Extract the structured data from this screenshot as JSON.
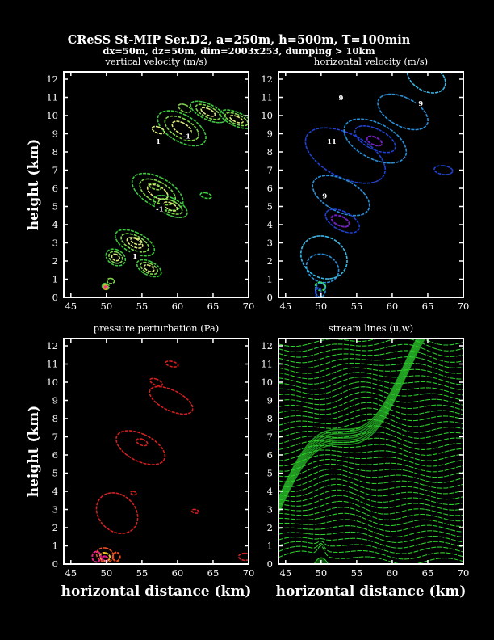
{
  "header": {
    "title": "CReSS St-MIP Ser.D2, a=250m, h=500m, T=100min",
    "subtitle": "dx=50m, dz=50m, dim=2003x253, dumping > 10km"
  },
  "axes": {
    "ylabel": "height (km)",
    "xlabel": "horizontal distance (km)"
  },
  "colors": {
    "background": "#000000",
    "frame": "#ffffff",
    "vertical_velocity": [
      "#3cc83c",
      "#7fd24a",
      "#d8e87a",
      "#f0a020",
      "#e43c8c"
    ],
    "horizontal_velocity": [
      "#2040d0",
      "#2890d8",
      "#38b8e8",
      "#7020c0",
      "#40e060"
    ],
    "pressure": [
      "#d02020",
      "#e85020",
      "#f0c020",
      "#e02080"
    ],
    "streamlines": "#2ccc2c"
  },
  "chart_data": [
    {
      "type": "contour",
      "title": "vertical velocity (m/s)",
      "xlabel": "",
      "ylabel": "height (km)",
      "xlim": [
        44,
        70
      ],
      "ylim": [
        0,
        12.4
      ],
      "xticks": [
        45,
        50,
        55,
        60,
        65,
        70
      ],
      "yticks": [
        0,
        1,
        2,
        3,
        4,
        5,
        6,
        7,
        8,
        9,
        10,
        11,
        12
      ],
      "contour_labels": [
        {
          "text": "1",
          "x": 57.3,
          "y": 8.6
        },
        {
          "text": "-1",
          "x": 61.3,
          "y": 8.9
        },
        {
          "text": "-1",
          "x": 57.5,
          "y": 4.9
        },
        {
          "text": "1",
          "x": 54.0,
          "y": 2.3
        }
      ]
    },
    {
      "type": "contour",
      "title": "horizontal velocity (m/s)",
      "xlabel": "",
      "ylabel": "",
      "xlim": [
        44,
        70
      ],
      "ylim": [
        0,
        12.4
      ],
      "xticks": [
        45,
        50,
        55,
        60,
        65,
        70
      ],
      "yticks": [
        0,
        1,
        2,
        3,
        4,
        5,
        6,
        7,
        8,
        9,
        10,
        11,
        12
      ],
      "contour_labels": [
        {
          "text": "9",
          "x": 52.8,
          "y": 11.0
        },
        {
          "text": "9",
          "x": 64.0,
          "y": 10.7
        },
        {
          "text": "11",
          "x": 51.5,
          "y": 8.6
        },
        {
          "text": "9",
          "x": 50.5,
          "y": 5.6
        }
      ]
    },
    {
      "type": "contour",
      "title": "pressure perturbation (Pa)",
      "xlabel": "horizontal distance (km)",
      "ylabel": "height (km)",
      "xlim": [
        44,
        70
      ],
      "ylim": [
        0,
        12.4
      ],
      "xticks": [
        45,
        50,
        55,
        60,
        65,
        70
      ],
      "yticks": [
        0,
        1,
        2,
        3,
        4,
        5,
        6,
        7,
        8,
        9,
        10,
        11,
        12
      ],
      "contour_labels": []
    },
    {
      "type": "streamlines",
      "title": "stream lines (u,w)",
      "xlabel": "horizontal distance (km)",
      "ylabel": "",
      "xlim": [
        44,
        70
      ],
      "ylim": [
        0,
        12.4
      ],
      "xticks": [
        45,
        50,
        55,
        60,
        65,
        70
      ],
      "yticks": [
        0,
        1,
        2,
        3,
        4,
        5,
        6,
        7,
        8,
        9,
        10,
        11,
        12
      ],
      "contour_labels": []
    }
  ]
}
